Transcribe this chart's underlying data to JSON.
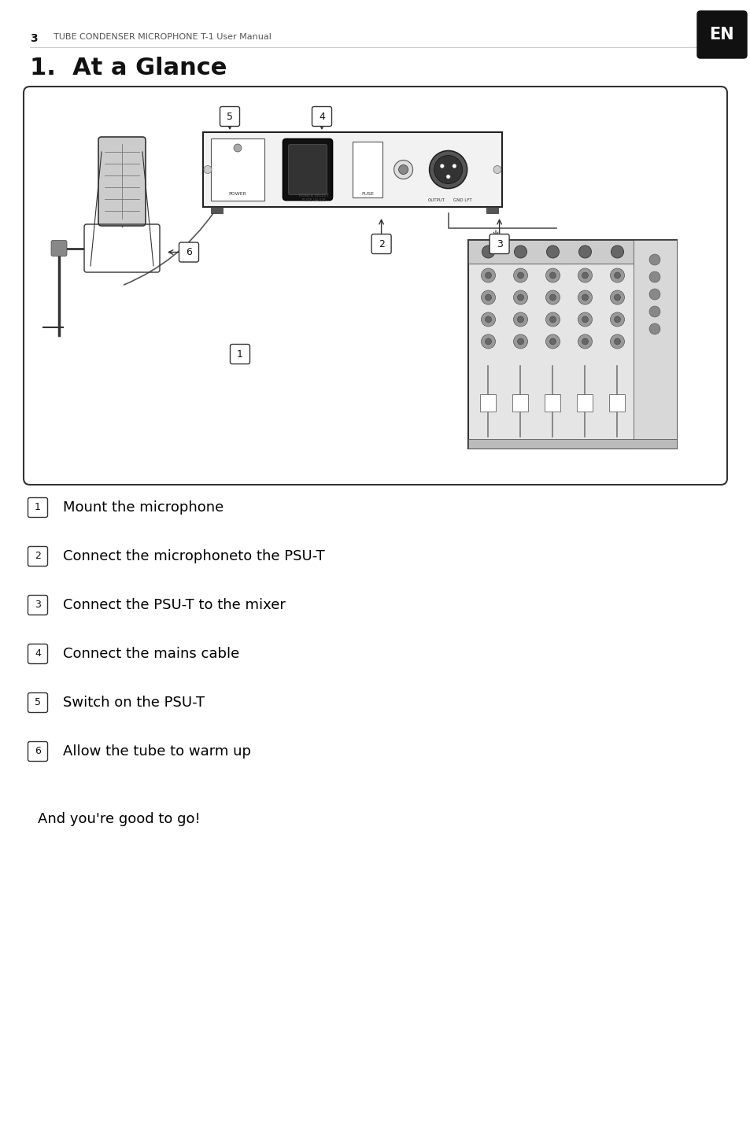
{
  "page_number": "3",
  "header_text": "TUBE CONDENSER MICROPHONE T-1 User Manual",
  "title": "1.  At a Glance",
  "en_badge": "EN",
  "background_color": "#ffffff",
  "text_color": "#000000",
  "steps": [
    {
      "num": "1",
      "text": "Mount the microphone"
    },
    {
      "num": "2",
      "text": "Connect the microphoneto the PSU-T"
    },
    {
      "num": "3",
      "text": "Connect the PSU-T to the mixer"
    },
    {
      "num": "4",
      "text": "Connect the mains cable"
    },
    {
      "num": "5",
      "text": "Switch on the PSU-T"
    },
    {
      "num": "6",
      "text": "Allow the tube to warm up"
    }
  ],
  "footer_text": "And you're good to go!",
  "header_fontsize": 8,
  "title_fontsize": 22,
  "step_fontsize": 13,
  "footer_fontsize": 13
}
